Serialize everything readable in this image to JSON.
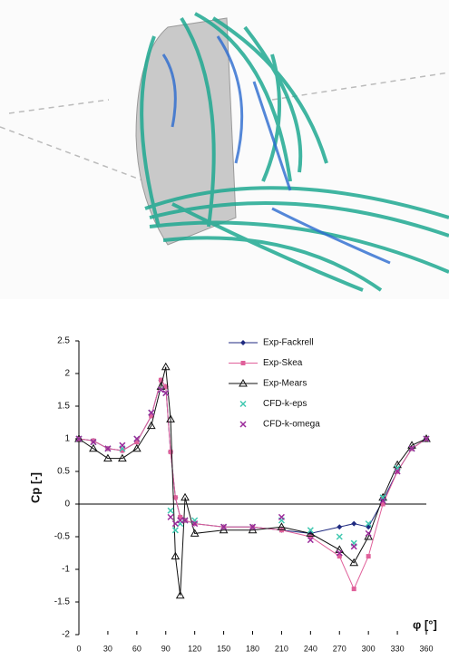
{
  "chart_data": {
    "type": "line",
    "y_label": "Cp [-]",
    "x_label": "φ [°]",
    "x": [
      0,
      15,
      30,
      45,
      60,
      75,
      85,
      90,
      95,
      100,
      105,
      110,
      120,
      150,
      180,
      210,
      240,
      270,
      285,
      300,
      315,
      330,
      345,
      360
    ],
    "series": [
      {
        "name": "Exp-Fackrell",
        "color": "#1f2a80",
        "marker": "diamond",
        "line": true,
        "values": [
          1,
          0.97,
          0.85,
          0.82,
          0.95,
          1.35,
          1.9,
          1.8,
          0.8,
          0.1,
          -0.2,
          -0.25,
          -0.3,
          -0.35,
          -0.35,
          -0.4,
          -0.45,
          -0.35,
          -0.3,
          -0.35,
          0.05,
          0.5,
          0.85,
          1
        ]
      },
      {
        "name": "Exp-Skea",
        "color": "#e0609a",
        "marker": "square",
        "line": true,
        "values": [
          1,
          0.97,
          0.85,
          0.82,
          0.95,
          1.35,
          1.9,
          1.8,
          0.8,
          0.1,
          -0.2,
          -0.25,
          -0.3,
          -0.35,
          -0.35,
          -0.4,
          -0.5,
          -0.8,
          -1.3,
          -0.8,
          0,
          0.5,
          0.85,
          1
        ]
      },
      {
        "name": "Exp-Mears",
        "color": "#111111",
        "marker": "triangle",
        "line": true,
        "values": [
          1,
          0.85,
          0.7,
          0.7,
          0.85,
          1.2,
          1.8,
          2.1,
          1.3,
          -0.8,
          -1.4,
          0.1,
          -0.45,
          -0.4,
          -0.4,
          -0.35,
          -0.45,
          -0.7,
          -0.9,
          -0.5,
          0.1,
          0.6,
          0.9,
          1
        ]
      },
      {
        "name": "CFD-k-eps",
        "color": "#40c8b0",
        "marker": "x",
        "line": false,
        "values": [
          1,
          0.95,
          0.85,
          0.85,
          1,
          1.4,
          1.75,
          1.7,
          -0.1,
          -0.4,
          -0.3,
          -0.25,
          -0.25,
          -0.35,
          -0.35,
          -0.25,
          -0.4,
          -0.5,
          -0.6,
          -0.3,
          0.1,
          0.55,
          0.85,
          1
        ]
      },
      {
        "name": "CFD-k-omega",
        "color": "#9a2a9a",
        "marker": "x",
        "line": false,
        "values": [
          1,
          0.95,
          0.85,
          0.9,
          1,
          1.4,
          1.75,
          1.7,
          -0.2,
          -0.3,
          -0.25,
          -0.25,
          -0.3,
          -0.35,
          -0.35,
          -0.2,
          -0.55,
          -0.75,
          -0.65,
          -0.45,
          0.05,
          0.5,
          0.85,
          1
        ]
      }
    ],
    "xlim": [
      0,
      360
    ],
    "xticks": [
      0,
      30,
      60,
      90,
      120,
      150,
      180,
      210,
      240,
      270,
      300,
      330,
      360
    ],
    "ylim": [
      -2,
      2.5
    ],
    "yticks": [
      -2,
      -1.5,
      -1,
      -0.5,
      0,
      0.5,
      1,
      1.5,
      2,
      2.5
    ],
    "grid": false,
    "legend": "top-right"
  }
}
